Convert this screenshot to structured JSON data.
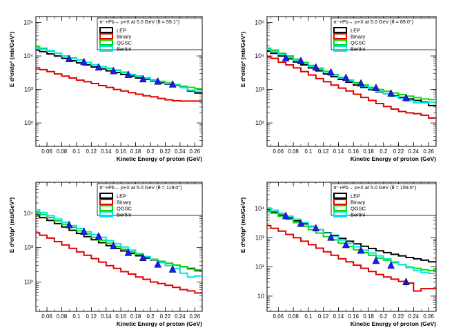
{
  "chart_data": [
    {
      "type": "line",
      "title": "π⁺+Pb→ p+X at 5.0 GeV (θ = 59.1°)",
      "xlabel": "Kinetic Energy of proton (GeV)",
      "ylabel": "E d³σ/dp³ (mb/GeV²)",
      "xlim": [
        0.045,
        0.27
      ],
      "ylim": [
        20,
        150000
      ],
      "yscale": "log",
      "xticks": [
        0.06,
        0.08,
        0.1,
        0.12,
        0.14,
        0.16,
        0.18,
        0.2,
        0.22,
        0.24,
        0.26
      ],
      "xtick_labels": [
        "0.06",
        "0.08",
        "0.1",
        "0.12",
        "0.14",
        "0.16",
        "0.18",
        "0.2",
        "0.22",
        "0.24",
        "0.26"
      ],
      "yticks": [
        100,
        1000,
        10000,
        100000
      ],
      "ytick_labels": [
        "10²",
        "10³",
        "10⁴",
        "10⁵"
      ],
      "bin_edges": [
        0.045,
        0.05,
        0.06,
        0.07,
        0.08,
        0.09,
        0.1,
        0.11,
        0.12,
        0.13,
        0.14,
        0.15,
        0.16,
        0.17,
        0.18,
        0.19,
        0.2,
        0.21,
        0.22,
        0.23,
        0.24,
        0.25,
        0.26,
        0.27
      ],
      "series": [
        {
          "name": "LEP",
          "color": "#000000",
          "values": [
            15000,
            13500,
            11500,
            10000,
            8500,
            7200,
            6200,
            5400,
            4700,
            4100,
            3600,
            3200,
            2800,
            2500,
            2200,
            2000,
            1800,
            1600,
            1450,
            1300,
            1150,
            900,
            780
          ]
        },
        {
          "name": "Binary",
          "color": "#e00000",
          "values": [
            4400,
            3900,
            3400,
            2900,
            2500,
            2200,
            1900,
            1700,
            1500,
            1300,
            1150,
            1000,
            900,
            800,
            720,
            650,
            600,
            540,
            490,
            460,
            450,
            450,
            450
          ]
        },
        {
          "name": "QGSC",
          "color": "#00dd00",
          "values": [
            19000,
            17000,
            14000,
            12000,
            10000,
            8800,
            7600,
            6400,
            5500,
            4800,
            4200,
            3700,
            3200,
            2800,
            2500,
            2200,
            1950,
            1750,
            1550,
            1400,
            1250,
            1150,
            1050
          ]
        },
        {
          "name": "Bertini",
          "color": "#00e5e5",
          "values": [
            17000,
            16000,
            14500,
            12000,
            10000,
            8500,
            7500,
            6400,
            5400,
            4800,
            4300,
            3800,
            3300,
            2800,
            2400,
            2100,
            1900,
            1700,
            1500,
            1350,
            1150,
            950,
            870
          ]
        }
      ],
      "points": {
        "x": [
          0.09,
          0.11,
          0.13,
          0.15,
          0.17,
          0.19,
          0.21,
          0.23
        ],
        "y": [
          8000,
          6500,
          4500,
          3500,
          2700,
          2000,
          1700,
          1400
        ]
      },
      "legend": "top-right"
    },
    {
      "type": "line",
      "title": "π⁺+Pb→ p+X at 5.0 GeV (θ = 89.0°)",
      "xlabel": "Kinetic Energy of proton (GeV)",
      "ylabel": "E d³σ/dp³ (mb/GeV²)",
      "xlim": [
        0.045,
        0.27
      ],
      "ylim": [
        20,
        150000
      ],
      "yscale": "log",
      "xticks": [
        0.06,
        0.08,
        0.1,
        0.12,
        0.14,
        0.16,
        0.18,
        0.2,
        0.22,
        0.24,
        0.26
      ],
      "xtick_labels": [
        "0.06",
        "0.08",
        "0.1",
        "0.12",
        "0.14",
        "0.16",
        "0.18",
        "0.2",
        "0.22",
        "0.24",
        "0.26"
      ],
      "yticks": [
        100,
        1000,
        10000,
        100000
      ],
      "ytick_labels": [
        "10²",
        "10³",
        "10⁴",
        "10⁵"
      ],
      "bin_edges": [
        0.045,
        0.05,
        0.06,
        0.07,
        0.08,
        0.09,
        0.1,
        0.11,
        0.12,
        0.13,
        0.14,
        0.15,
        0.16,
        0.17,
        0.18,
        0.19,
        0.2,
        0.21,
        0.22,
        0.23,
        0.24,
        0.25,
        0.26,
        0.27
      ],
      "series": [
        {
          "name": "LEP",
          "color": "#000000",
          "values": [
            14000,
            12000,
            10000,
            8200,
            6600,
            5400,
            4400,
            3600,
            2900,
            2400,
            2000,
            1650,
            1350,
            1150,
            980,
            850,
            740,
            650,
            580,
            520,
            470,
            420,
            330
          ]
        },
        {
          "name": "Binary",
          "color": "#e00000",
          "values": [
            9500,
            8500,
            6500,
            5400,
            4400,
            3400,
            2700,
            2100,
            1700,
            1350,
            1100,
            900,
            720,
            580,
            470,
            380,
            310,
            260,
            220,
            200,
            190,
            170,
            140
          ]
        },
        {
          "name": "QGSC",
          "color": "#00dd00",
          "values": [
            17000,
            15000,
            12000,
            10000,
            8000,
            6400,
            5200,
            4300,
            3500,
            2800,
            2300,
            1900,
            1600,
            1350,
            1150,
            1000,
            880,
            780,
            700,
            630,
            570,
            520,
            500
          ]
        },
        {
          "name": "Bertini",
          "color": "#00e5e5",
          "values": [
            16000,
            13500,
            11000,
            9000,
            7400,
            6000,
            4900,
            4000,
            3300,
            2700,
            2200,
            1800,
            1500,
            1250,
            1050,
            880,
            740,
            620,
            540,
            460,
            400,
            400,
            420
          ]
        }
      ],
      "points": {
        "x": [
          0.07,
          0.09,
          0.11,
          0.13,
          0.15,
          0.17,
          0.19,
          0.21,
          0.23
        ],
        "y": [
          8500,
          7000,
          4500,
          3200,
          2200,
          1500,
          1100,
          750,
          550
        ]
      },
      "legend": "top-right"
    },
    {
      "type": "line",
      "title": "π⁺+Pb→ p+X at 5.0 GeV (θ = 119.0°)",
      "xlabel": "Kinetic Energy of proton (GeV)",
      "ylabel": "E d³σ/dp³ (mb/GeV²)",
      "xlim": [
        0.045,
        0.27
      ],
      "ylim": [
        14,
        80000
      ],
      "yscale": "log",
      "xticks": [
        0.06,
        0.08,
        0.1,
        0.12,
        0.14,
        0.16,
        0.18,
        0.2,
        0.22,
        0.24,
        0.26
      ],
      "xtick_labels": [
        "0.06",
        "0.08",
        "0.1",
        "0.12",
        "0.14",
        "0.16",
        "0.18",
        "0.2",
        "0.22",
        "0.24",
        "0.26"
      ],
      "yticks": [
        100,
        1000,
        10000
      ],
      "ytick_labels": [
        "10²",
        "10³",
        "10⁴"
      ],
      "bin_edges": [
        0.045,
        0.05,
        0.06,
        0.07,
        0.08,
        0.09,
        0.1,
        0.11,
        0.12,
        0.13,
        0.14,
        0.15,
        0.16,
        0.17,
        0.18,
        0.19,
        0.2,
        0.21,
        0.22,
        0.23,
        0.24,
        0.25,
        0.26,
        0.27
      ],
      "series": [
        {
          "name": "LEP",
          "color": "#000000",
          "values": [
            9000,
            7500,
            6200,
            5000,
            4000,
            3200,
            2600,
            2100,
            1700,
            1400,
            1150,
            950,
            800,
            680,
            580,
            500,
            440,
            390,
            350,
            310,
            280,
            250,
            220
          ]
        },
        {
          "name": "Binary",
          "color": "#e00000",
          "values": [
            2700,
            2300,
            1900,
            1500,
            1200,
            950,
            750,
            600,
            480,
            380,
            300,
            250,
            200,
            170,
            140,
            120,
            100,
            90,
            80,
            70,
            60,
            55,
            48
          ]
        },
        {
          "name": "QGSC",
          "color": "#00dd00",
          "values": [
            11000,
            9200,
            7500,
            6000,
            4800,
            3900,
            3100,
            2500,
            2000,
            1650,
            1350,
            1100,
            900,
            760,
            640,
            540,
            460,
            400,
            350,
            310,
            280,
            240,
            210
          ]
        },
        {
          "name": "Bertini",
          "color": "#00e5e5",
          "values": [
            12500,
            10500,
            8500,
            6800,
            5500,
            4400,
            3600,
            2900,
            2400,
            2000,
            1600,
            1300,
            1050,
            850,
            680,
            550,
            450,
            370,
            300,
            250,
            180,
            140,
            150
          ]
        }
      ],
      "points": {
        "x": [
          0.09,
          0.11,
          0.13,
          0.15,
          0.17,
          0.19,
          0.21,
          0.23
        ],
        "y": [
          4500,
          2900,
          2100,
          1100,
          700,
          500,
          320,
          230
        ]
      },
      "legend": "top-right"
    },
    {
      "type": "line",
      "title": "π⁺+Pb→ p+X at 5.0 GeV (θ = 159.6°)",
      "xlabel": "Kinetic Energy of proton (GeV)",
      "ylabel": "E d³σ/dp³ (mb/GeV²)",
      "xlim": [
        0.045,
        0.27
      ],
      "ylim": [
        3,
        80000
      ],
      "yscale": "log",
      "xticks": [
        0.06,
        0.08,
        0.1,
        0.12,
        0.14,
        0.16,
        0.18,
        0.2,
        0.22,
        0.24,
        0.26
      ],
      "xtick_labels": [
        "0.06",
        "0.08",
        "0.1",
        "0.12",
        "0.14",
        "0.16",
        "0.18",
        "0.2",
        "0.22",
        "0.24",
        "0.26"
      ],
      "yticks": [
        10,
        100,
        1000,
        10000
      ],
      "ytick_labels": [
        "10",
        "10²",
        "10³",
        "10⁴"
      ],
      "bin_edges": [
        0.045,
        0.05,
        0.06,
        0.07,
        0.08,
        0.09,
        0.1,
        0.11,
        0.12,
        0.13,
        0.14,
        0.15,
        0.16,
        0.17,
        0.18,
        0.19,
        0.2,
        0.21,
        0.22,
        0.23,
        0.24,
        0.25,
        0.26,
        0.27
      ],
      "series": [
        {
          "name": "LEP",
          "color": "#000000",
          "values": [
            9000,
            7500,
            6000,
            4800,
            3800,
            3000,
            2400,
            1900,
            1500,
            1200,
            950,
            760,
            620,
            510,
            430,
            360,
            310,
            270,
            240,
            210,
            190,
            170,
            150
          ]
        },
        {
          "name": "Binary",
          "color": "#e00000",
          "values": [
            2600,
            2100,
            1700,
            1300,
            1000,
            760,
            580,
            440,
            330,
            250,
            190,
            150,
            115,
            90,
            70,
            55,
            45,
            38,
            32,
            28,
            15,
            18,
            18
          ]
        },
        {
          "name": "QGSC",
          "color": "#00dd00",
          "values": [
            8500,
            7000,
            5500,
            4300,
            3300,
            2500,
            1900,
            1450,
            1100,
            850,
            650,
            500,
            390,
            310,
            250,
            200,
            170,
            140,
            120,
            100,
            90,
            80,
            75
          ]
        },
        {
          "name": "Bertini",
          "color": "#00e5e5",
          "values": [
            10500,
            8800,
            7000,
            5500,
            4300,
            3300,
            2500,
            1900,
            1450,
            1100,
            830,
            640,
            490,
            380,
            300,
            240,
            190,
            150,
            120,
            95,
            75,
            65,
            60
          ]
        }
      ],
      "points": {
        "x": [
          0.07,
          0.09,
          0.11,
          0.13,
          0.15,
          0.17,
          0.19,
          0.21,
          0.23
        ],
        "y": [
          5500,
          3000,
          2100,
          1000,
          560,
          360,
          160,
          110,
          30
        ]
      },
      "legend": "top-right"
    }
  ]
}
